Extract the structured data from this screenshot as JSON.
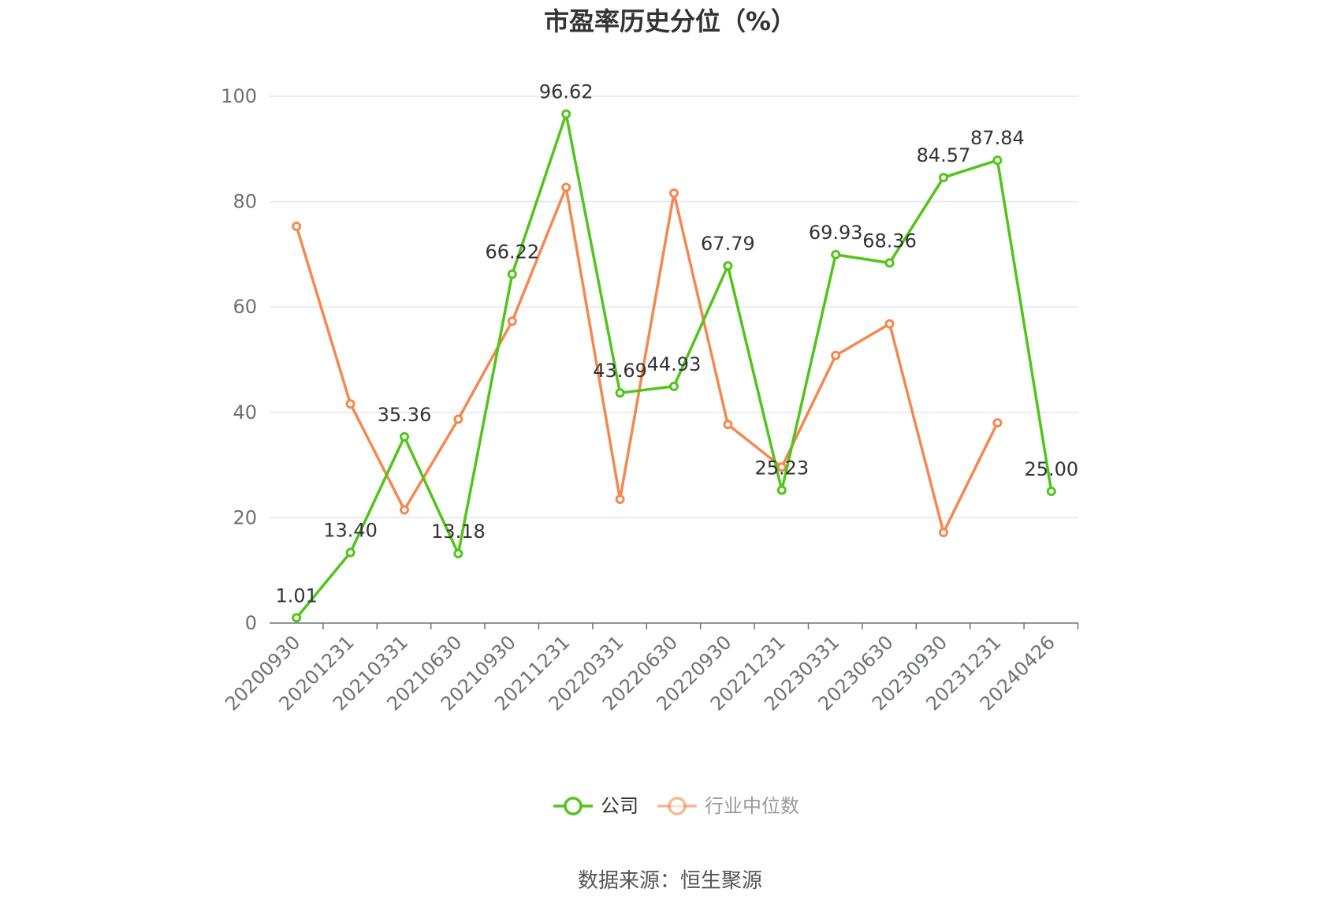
{
  "chart_data": {
    "type": "line",
    "title": "市盈率历史分位（%）",
    "categories": [
      "20200930",
      "20201231",
      "20210331",
      "20210630",
      "20210930",
      "20211231",
      "20220331",
      "20220630",
      "20220930",
      "20221231",
      "20230331",
      "20230630",
      "20230930",
      "20231231",
      "20240426"
    ],
    "ylim": [
      0,
      100
    ],
    "yticks": [
      0,
      20,
      40,
      60,
      80,
      100
    ],
    "grid": true,
    "legend_position": "bottom-center",
    "series": [
      {
        "name": "公司",
        "color": "#52c41a",
        "values": [
          1.01,
          13.4,
          35.36,
          13.18,
          66.22,
          96.62,
          43.69,
          44.93,
          67.79,
          25.23,
          69.93,
          68.36,
          84.57,
          87.84,
          25.0
        ],
        "labels": [
          "1.01",
          "13.40",
          "35.36",
          "13.18",
          "66.22",
          "96.62",
          "43.69",
          "44.93",
          "67.79",
          "25.23",
          "69.93",
          "68.36",
          "84.57",
          "87.84",
          "25.00"
        ]
      },
      {
        "name": "行业中位数",
        "color": "#f5884f",
        "values": [
          75.3,
          41.6,
          21.5,
          38.7,
          57.3,
          82.7,
          23.5,
          81.6,
          37.7,
          29.6,
          50.8,
          56.8,
          17.2,
          38.0,
          null
        ]
      }
    ],
    "source": "数据来源：恒生聚源"
  }
}
